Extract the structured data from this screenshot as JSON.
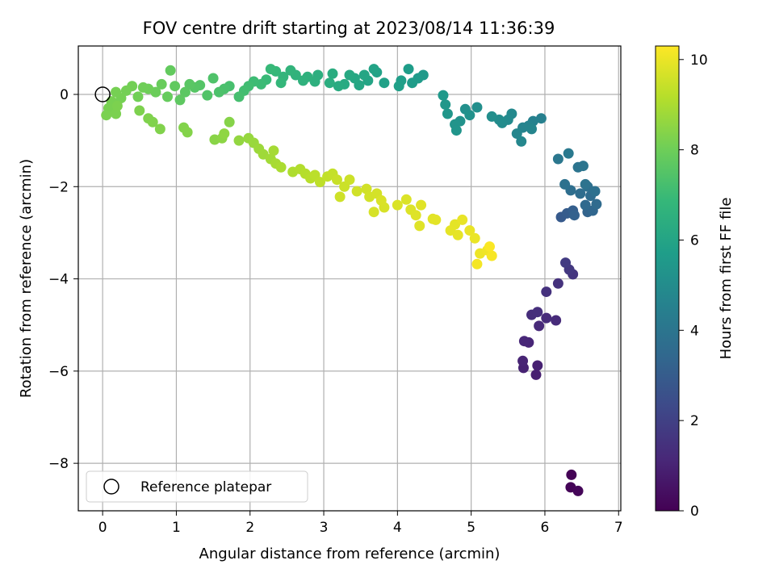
{
  "chart_data": {
    "type": "scatter",
    "title": "FOV centre drift starting at 2023/08/14 11:36:39",
    "xlabel": "Angular distance from reference (arcmin)",
    "ylabel": "Rotation from reference (arcmin)",
    "xlim": [
      -0.33,
      7.03
    ],
    "ylim": [
      -9.03,
      1.05
    ],
    "xticks": [
      0,
      1,
      2,
      3,
      4,
      5,
      6,
      7
    ],
    "yticks": [
      -8,
      -6,
      -4,
      -2,
      0
    ],
    "grid": true,
    "legend": {
      "position": "lower-left",
      "entries": [
        "Reference platepar"
      ]
    },
    "reference_point": {
      "x": 0,
      "y": 0
    },
    "colorbar": {
      "label": "Hours from first FF file",
      "range": [
        0,
        10.3
      ],
      "ticks": [
        0,
        2,
        4,
        6,
        8,
        10
      ],
      "colormap": "viridis",
      "stops": [
        "#440154",
        "#482878",
        "#3e4989",
        "#31688e",
        "#26828e",
        "#1f9e89",
        "#35b779",
        "#6ece58",
        "#b5de2b",
        "#fde725"
      ]
    },
    "points": [
      {
        "x": 6.36,
        "y": -8.25,
        "c": 0.05
      },
      {
        "x": 6.35,
        "y": -8.52,
        "c": 0.1
      },
      {
        "x": 6.45,
        "y": -8.6,
        "c": 0.15
      },
      {
        "x": 5.88,
        "y": -6.08,
        "c": 0.9
      },
      {
        "x": 5.9,
        "y": -5.88,
        "c": 0.95
      },
      {
        "x": 5.71,
        "y": -5.93,
        "c": 1.0
      },
      {
        "x": 5.7,
        "y": -5.78,
        "c": 1.05
      },
      {
        "x": 5.78,
        "y": -5.38,
        "c": 1.1
      },
      {
        "x": 5.72,
        "y": -5.35,
        "c": 1.15
      },
      {
        "x": 5.92,
        "y": -5.02,
        "c": 1.2
      },
      {
        "x": 6.15,
        "y": -4.9,
        "c": 1.25
      },
      {
        "x": 6.02,
        "y": -4.85,
        "c": 1.3
      },
      {
        "x": 5.82,
        "y": -4.78,
        "c": 1.35
      },
      {
        "x": 5.9,
        "y": -4.72,
        "c": 1.4
      },
      {
        "x": 6.02,
        "y": -4.28,
        "c": 1.45
      },
      {
        "x": 6.18,
        "y": -4.1,
        "c": 1.5
      },
      {
        "x": 6.38,
        "y": -3.9,
        "c": 1.6
      },
      {
        "x": 6.33,
        "y": -3.8,
        "c": 1.7
      },
      {
        "x": 6.28,
        "y": -3.65,
        "c": 1.8
      },
      {
        "x": 6.22,
        "y": -2.66,
        "c": 2.9
      },
      {
        "x": 6.3,
        "y": -2.58,
        "c": 3.0
      },
      {
        "x": 6.38,
        "y": -2.52,
        "c": 3.1
      },
      {
        "x": 6.4,
        "y": -2.62,
        "c": 3.2
      },
      {
        "x": 6.58,
        "y": -2.55,
        "c": 3.3
      },
      {
        "x": 6.65,
        "y": -2.52,
        "c": 3.4
      },
      {
        "x": 6.55,
        "y": -2.4,
        "c": 3.5
      },
      {
        "x": 6.7,
        "y": -2.38,
        "c": 3.55
      },
      {
        "x": 6.62,
        "y": -2.2,
        "c": 3.6
      },
      {
        "x": 6.48,
        "y": -2.15,
        "c": 3.65
      },
      {
        "x": 6.35,
        "y": -2.08,
        "c": 3.7
      },
      {
        "x": 6.58,
        "y": -2.0,
        "c": 3.75
      },
      {
        "x": 6.68,
        "y": -2.1,
        "c": 3.8
      },
      {
        "x": 6.27,
        "y": -1.95,
        "c": 3.85
      },
      {
        "x": 6.55,
        "y": -1.95,
        "c": 3.9
      },
      {
        "x": 6.45,
        "y": -1.58,
        "c": 3.95
      },
      {
        "x": 6.52,
        "y": -1.55,
        "c": 4.0
      },
      {
        "x": 6.18,
        "y": -1.4,
        "c": 4.1
      },
      {
        "x": 6.32,
        "y": -1.28,
        "c": 4.2
      },
      {
        "x": 5.95,
        "y": -0.52,
        "c": 4.5
      },
      {
        "x": 5.84,
        "y": -0.58,
        "c": 4.55
      },
      {
        "x": 5.78,
        "y": -0.68,
        "c": 4.6
      },
      {
        "x": 5.7,
        "y": -0.72,
        "c": 4.65
      },
      {
        "x": 5.82,
        "y": -0.75,
        "c": 4.7
      },
      {
        "x": 5.62,
        "y": -0.85,
        "c": 4.75
      },
      {
        "x": 5.68,
        "y": -1.02,
        "c": 4.8
      },
      {
        "x": 5.55,
        "y": -0.42,
        "c": 4.85
      },
      {
        "x": 5.5,
        "y": -0.55,
        "c": 4.9
      },
      {
        "x": 5.42,
        "y": -0.62,
        "c": 4.95
      },
      {
        "x": 5.38,
        "y": -0.55,
        "c": 5.0
      },
      {
        "x": 5.28,
        "y": -0.48,
        "c": 5.05
      },
      {
        "x": 5.08,
        "y": -0.28,
        "c": 5.1
      },
      {
        "x": 4.92,
        "y": -0.32,
        "c": 5.15
      },
      {
        "x": 4.98,
        "y": -0.45,
        "c": 5.2
      },
      {
        "x": 4.85,
        "y": -0.58,
        "c": 5.25
      },
      {
        "x": 4.78,
        "y": -0.65,
        "c": 5.3
      },
      {
        "x": 4.8,
        "y": -0.78,
        "c": 5.35
      },
      {
        "x": 4.68,
        "y": -0.42,
        "c": 5.4
      },
      {
        "x": 4.65,
        "y": -0.22,
        "c": 5.45
      },
      {
        "x": 4.62,
        "y": -0.02,
        "c": 5.5
      },
      {
        "x": 4.35,
        "y": 0.42,
        "c": 5.55
      },
      {
        "x": 4.28,
        "y": 0.35,
        "c": 5.6
      },
      {
        "x": 4.2,
        "y": 0.25,
        "c": 5.65
      },
      {
        "x": 4.15,
        "y": 0.55,
        "c": 5.7
      },
      {
        "x": 4.05,
        "y": 0.3,
        "c": 5.75
      },
      {
        "x": 4.02,
        "y": 0.18,
        "c": 5.8
      },
      {
        "x": 3.82,
        "y": 0.25,
        "c": 5.85
      },
      {
        "x": 3.72,
        "y": 0.48,
        "c": 5.9
      },
      {
        "x": 3.68,
        "y": 0.55,
        "c": 5.95
      },
      {
        "x": 3.6,
        "y": 0.3,
        "c": 6.0
      },
      {
        "x": 3.55,
        "y": 0.42,
        "c": 6.05
      },
      {
        "x": 3.48,
        "y": 0.2,
        "c": 6.1
      },
      {
        "x": 3.42,
        "y": 0.35,
        "c": 6.15
      },
      {
        "x": 3.35,
        "y": 0.42,
        "c": 6.2
      },
      {
        "x": 3.28,
        "y": 0.22,
        "c": 6.25
      },
      {
        "x": 3.2,
        "y": 0.18,
        "c": 6.3
      },
      {
        "x": 3.12,
        "y": 0.45,
        "c": 6.35
      },
      {
        "x": 3.08,
        "y": 0.25,
        "c": 6.4
      },
      {
        "x": 2.92,
        "y": 0.42,
        "c": 6.45
      },
      {
        "x": 2.88,
        "y": 0.28,
        "c": 6.5
      },
      {
        "x": 2.78,
        "y": 0.38,
        "c": 6.55
      },
      {
        "x": 2.72,
        "y": 0.3,
        "c": 6.6
      },
      {
        "x": 2.62,
        "y": 0.42,
        "c": 6.65
      },
      {
        "x": 2.55,
        "y": 0.52,
        "c": 6.7
      },
      {
        "x": 2.45,
        "y": 0.38,
        "c": 6.75
      },
      {
        "x": 2.42,
        "y": 0.25,
        "c": 6.8
      },
      {
        "x": 2.35,
        "y": 0.5,
        "c": 6.85
      },
      {
        "x": 2.28,
        "y": 0.55,
        "c": 6.9
      },
      {
        "x": 2.22,
        "y": 0.32,
        "c": 6.95
      },
      {
        "x": 2.15,
        "y": 0.22,
        "c": 7.0
      },
      {
        "x": 2.05,
        "y": 0.28,
        "c": 7.05
      },
      {
        "x": 1.98,
        "y": 0.18,
        "c": 7.1
      },
      {
        "x": 1.92,
        "y": 0.08,
        "c": 7.15
      },
      {
        "x": 1.85,
        "y": -0.05,
        "c": 7.2
      },
      {
        "x": 1.72,
        "y": 0.18,
        "c": 7.25
      },
      {
        "x": 1.65,
        "y": 0.12,
        "c": 7.3
      },
      {
        "x": 1.58,
        "y": 0.05,
        "c": 7.35
      },
      {
        "x": 1.5,
        "y": 0.35,
        "c": 7.4
      },
      {
        "x": 1.42,
        "y": -0.02,
        "c": 7.45
      },
      {
        "x": 1.32,
        "y": 0.2,
        "c": 7.5
      },
      {
        "x": 1.25,
        "y": 0.15,
        "c": 7.55
      },
      {
        "x": 1.18,
        "y": 0.22,
        "c": 7.6
      },
      {
        "x": 1.12,
        "y": 0.05,
        "c": 7.65
      },
      {
        "x": 1.05,
        "y": -0.12,
        "c": 7.7
      },
      {
        "x": 0.98,
        "y": 0.18,
        "c": 7.75
      },
      {
        "x": 0.92,
        "y": 0.52,
        "c": 7.8
      },
      {
        "x": 0.88,
        "y": -0.05,
        "c": 7.85
      },
      {
        "x": 0.8,
        "y": 0.22,
        "c": 7.9
      },
      {
        "x": 0.72,
        "y": 0.05,
        "c": 7.95
      },
      {
        "x": 0.62,
        "y": 0.12,
        "c": 8.0
      },
      {
        "x": 0.55,
        "y": 0.15,
        "c": 8.02
      },
      {
        "x": 0.48,
        "y": -0.05,
        "c": 8.05
      },
      {
        "x": 0.4,
        "y": 0.18,
        "c": 8.08
      },
      {
        "x": 0.32,
        "y": 0.08,
        "c": 8.1
      },
      {
        "x": 0.25,
        "y": -0.08,
        "c": 8.12
      },
      {
        "x": 0.18,
        "y": 0.05,
        "c": 8.14
      },
      {
        "x": 0.12,
        "y": -0.15,
        "c": 8.16
      },
      {
        "x": 0.08,
        "y": -0.3,
        "c": 8.18
      },
      {
        "x": 0.05,
        "y": -0.45,
        "c": 8.2
      },
      {
        "x": 0.18,
        "y": -0.42,
        "c": 8.22
      },
      {
        "x": 0.2,
        "y": -0.25,
        "c": 8.24
      },
      {
        "x": 0.5,
        "y": -0.35,
        "c": 8.26
      },
      {
        "x": 0.62,
        "y": -0.52,
        "c": 8.28
      },
      {
        "x": 0.68,
        "y": -0.6,
        "c": 8.3
      },
      {
        "x": 0.78,
        "y": -0.75,
        "c": 8.32
      },
      {
        "x": 1.1,
        "y": -0.72,
        "c": 8.34
      },
      {
        "x": 1.15,
        "y": -0.82,
        "c": 8.36
      },
      {
        "x": 1.72,
        "y": -0.6,
        "c": 8.4
      },
      {
        "x": 1.52,
        "y": -0.98,
        "c": 8.45
      },
      {
        "x": 1.62,
        "y": -0.95,
        "c": 8.5
      },
      {
        "x": 1.65,
        "y": -0.85,
        "c": 8.55
      },
      {
        "x": 1.85,
        "y": -1.0,
        "c": 8.6
      },
      {
        "x": 1.98,
        "y": -0.95,
        "c": 8.65
      },
      {
        "x": 2.05,
        "y": -1.05,
        "c": 8.7
      },
      {
        "x": 2.12,
        "y": -1.18,
        "c": 8.75
      },
      {
        "x": 2.18,
        "y": -1.3,
        "c": 8.8
      },
      {
        "x": 2.28,
        "y": -1.4,
        "c": 8.85
      },
      {
        "x": 2.32,
        "y": -1.22,
        "c": 8.9
      },
      {
        "x": 2.35,
        "y": -1.5,
        "c": 8.95
      },
      {
        "x": 2.42,
        "y": -1.58,
        "c": 9.0
      },
      {
        "x": 2.58,
        "y": -1.68,
        "c": 9.05
      },
      {
        "x": 2.68,
        "y": -1.62,
        "c": 9.1
      },
      {
        "x": 2.75,
        "y": -1.72,
        "c": 9.15
      },
      {
        "x": 2.82,
        "y": -1.82,
        "c": 9.2
      },
      {
        "x": 2.88,
        "y": -1.75,
        "c": 9.25
      },
      {
        "x": 2.95,
        "y": -1.9,
        "c": 9.3
      },
      {
        "x": 3.05,
        "y": -1.78,
        "c": 9.35
      },
      {
        "x": 3.12,
        "y": -1.72,
        "c": 9.4
      },
      {
        "x": 3.18,
        "y": -1.85,
        "c": 9.45
      },
      {
        "x": 3.28,
        "y": -2.0,
        "c": 9.5
      },
      {
        "x": 3.35,
        "y": -1.85,
        "c": 9.52
      },
      {
        "x": 3.22,
        "y": -2.22,
        "c": 9.55
      },
      {
        "x": 3.45,
        "y": -2.1,
        "c": 9.58
      },
      {
        "x": 3.58,
        "y": -2.05,
        "c": 9.6
      },
      {
        "x": 3.62,
        "y": -2.22,
        "c": 9.62
      },
      {
        "x": 3.72,
        "y": -2.15,
        "c": 9.65
      },
      {
        "x": 3.68,
        "y": -2.55,
        "c": 9.68
      },
      {
        "x": 3.82,
        "y": -2.45,
        "c": 9.7
      },
      {
        "x": 3.78,
        "y": -2.3,
        "c": 9.72
      },
      {
        "x": 4.0,
        "y": -2.4,
        "c": 9.74
      },
      {
        "x": 4.12,
        "y": -2.28,
        "c": 9.76
      },
      {
        "x": 4.18,
        "y": -2.5,
        "c": 9.78
      },
      {
        "x": 4.25,
        "y": -2.62,
        "c": 9.8
      },
      {
        "x": 4.3,
        "y": -2.85,
        "c": 9.82
      },
      {
        "x": 4.32,
        "y": -2.4,
        "c": 9.84
      },
      {
        "x": 4.48,
        "y": -2.7,
        "c": 9.86
      },
      {
        "x": 4.52,
        "y": -2.72,
        "c": 9.88
      },
      {
        "x": 4.78,
        "y": -2.82,
        "c": 9.9
      },
      {
        "x": 4.72,
        "y": -2.95,
        "c": 9.92
      },
      {
        "x": 4.82,
        "y": -3.05,
        "c": 9.94
      },
      {
        "x": 4.88,
        "y": -2.72,
        "c": 9.96
      },
      {
        "x": 4.98,
        "y": -2.95,
        "c": 9.98
      },
      {
        "x": 5.05,
        "y": -3.12,
        "c": 10.0
      },
      {
        "x": 5.12,
        "y": -3.45,
        "c": 10.05
      },
      {
        "x": 5.22,
        "y": -3.38,
        "c": 10.1
      },
      {
        "x": 5.08,
        "y": -3.68,
        "c": 10.15
      },
      {
        "x": 5.28,
        "y": -3.5,
        "c": 10.2
      },
      {
        "x": 5.25,
        "y": -3.3,
        "c": 10.25
      }
    ]
  }
}
